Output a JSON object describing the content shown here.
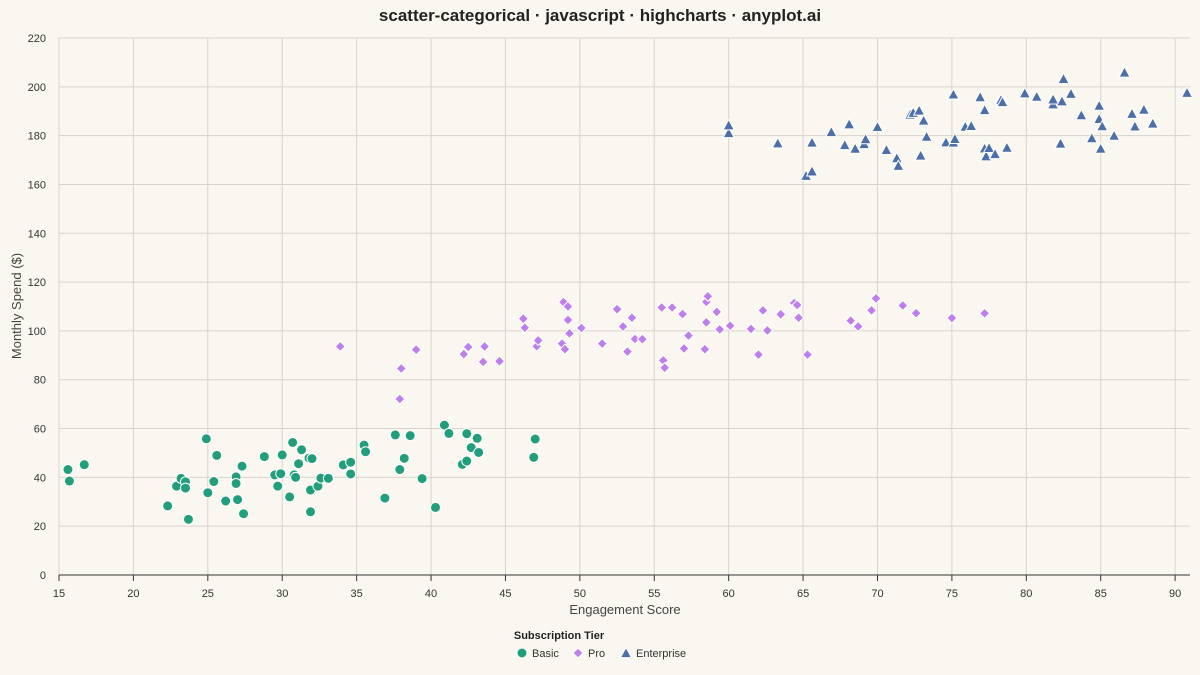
{
  "chart_data": {
    "type": "scatter",
    "title": "scatter-categorical · javascript · highcharts · anyplot.ai",
    "xlabel": "Engagement Score",
    "ylabel": "Monthly Spend ($)",
    "xlim": [
      15,
      91
    ],
    "ylim": [
      0,
      220
    ],
    "x_ticks": [
      15,
      20,
      25,
      30,
      35,
      40,
      45,
      50,
      55,
      60,
      65,
      70,
      75,
      80,
      85,
      90
    ],
    "y_ticks": [
      0,
      20,
      40,
      60,
      80,
      100,
      120,
      140,
      160,
      180,
      200,
      220
    ],
    "grid": true,
    "legend": {
      "title": "Subscription Tier",
      "placement": "bottom-center"
    },
    "series": [
      {
        "name": "Basic",
        "marker": "circle",
        "color": "#239E7C",
        "points": [
          [
            15.6,
            43.2
          ],
          [
            15.7,
            38.5
          ],
          [
            16.7,
            45.2
          ],
          [
            22.3,
            28.3
          ],
          [
            22.9,
            36.4
          ],
          [
            23.2,
            39.6
          ],
          [
            23.5,
            38.2
          ],
          [
            23.5,
            35.6
          ],
          [
            23.7,
            22.8
          ],
          [
            24.9,
            55.8
          ],
          [
            25.0,
            33.7
          ],
          [
            25.4,
            38.3
          ],
          [
            25.6,
            49.0
          ],
          [
            26.2,
            30.3
          ],
          [
            26.9,
            40.2
          ],
          [
            26.9,
            37.5
          ],
          [
            27.0,
            30.9
          ],
          [
            27.3,
            44.6
          ],
          [
            27.4,
            25.1
          ],
          [
            28.8,
            48.5
          ],
          [
            29.5,
            41.0
          ],
          [
            29.7,
            36.4
          ],
          [
            29.9,
            41.5
          ],
          [
            30.0,
            49.2
          ],
          [
            30.5,
            32.0
          ],
          [
            30.7,
            54.3
          ],
          [
            30.8,
            41.0
          ],
          [
            30.9,
            40.0
          ],
          [
            31.1,
            45.6
          ],
          [
            31.3,
            51.3
          ],
          [
            31.8,
            47.9
          ],
          [
            31.9,
            34.8
          ],
          [
            31.9,
            25.9
          ],
          [
            32.0,
            47.7
          ],
          [
            32.4,
            36.4
          ],
          [
            32.6,
            39.7
          ],
          [
            33.1,
            39.6
          ],
          [
            34.1,
            45.1
          ],
          [
            34.6,
            46.2
          ],
          [
            34.6,
            41.4
          ],
          [
            35.5,
            53.2
          ],
          [
            35.6,
            50.5
          ],
          [
            36.9,
            31.5
          ],
          [
            37.6,
            57.4
          ],
          [
            37.9,
            43.2
          ],
          [
            38.2,
            47.8
          ],
          [
            38.6,
            57.1
          ],
          [
            39.4,
            39.5
          ],
          [
            40.3,
            27.7
          ],
          [
            40.9,
            61.4
          ],
          [
            41.2,
            58.0
          ],
          [
            42.1,
            45.3
          ],
          [
            42.4,
            57.9
          ],
          [
            42.4,
            46.7
          ],
          [
            42.7,
            52.2
          ],
          [
            43.1,
            56.0
          ],
          [
            43.2,
            50.2
          ],
          [
            46.9,
            48.2
          ],
          [
            47.0,
            55.7
          ]
        ]
      },
      {
        "name": "Pro",
        "marker": "diamond",
        "color": "#C07EEC",
        "points": [
          [
            33.9,
            93.6
          ],
          [
            37.9,
            72.1
          ],
          [
            38.0,
            84.6
          ],
          [
            39.0,
            92.3
          ],
          [
            42.2,
            90.5
          ],
          [
            42.5,
            93.4
          ],
          [
            43.5,
            87.3
          ],
          [
            43.6,
            93.6
          ],
          [
            44.6,
            87.6
          ],
          [
            46.2,
            105.0
          ],
          [
            46.3,
            101.3
          ],
          [
            47.1,
            93.7
          ],
          [
            47.2,
            96.1
          ],
          [
            48.8,
            94.8
          ],
          [
            48.9,
            111.8
          ],
          [
            49.0,
            92.5
          ],
          [
            49.2,
            110.0
          ],
          [
            49.2,
            104.5
          ],
          [
            49.3,
            99.0
          ],
          [
            50.1,
            101.2
          ],
          [
            51.5,
            94.8
          ],
          [
            52.5,
            108.9
          ],
          [
            52.9,
            101.8
          ],
          [
            53.2,
            91.5
          ],
          [
            53.5,
            105.4
          ],
          [
            53.7,
            96.7
          ],
          [
            54.2,
            96.6
          ],
          [
            55.5,
            109.6
          ],
          [
            55.6,
            87.9
          ],
          [
            55.7,
            84.9
          ],
          [
            56.2,
            109.6
          ],
          [
            56.9,
            106.9
          ],
          [
            57.0,
            92.8
          ],
          [
            57.3,
            98.1
          ],
          [
            58.4,
            92.5
          ],
          [
            58.5,
            103.5
          ],
          [
            58.5,
            111.9
          ],
          [
            58.6,
            114.2
          ],
          [
            59.2,
            107.8
          ],
          [
            59.4,
            100.6
          ],
          [
            60.1,
            102.1
          ],
          [
            61.5,
            100.8
          ],
          [
            62.0,
            90.3
          ],
          [
            62.3,
            108.4
          ],
          [
            62.6,
            100.2
          ],
          [
            63.5,
            106.8
          ],
          [
            64.4,
            111.4
          ],
          [
            64.6,
            110.6
          ],
          [
            64.7,
            105.4
          ],
          [
            65.3,
            90.3
          ],
          [
            68.2,
            104.2
          ],
          [
            68.7,
            101.8
          ],
          [
            69.6,
            108.4
          ],
          [
            69.9,
            113.3
          ],
          [
            71.7,
            110.4
          ],
          [
            72.6,
            107.3
          ],
          [
            75.0,
            105.3
          ],
          [
            77.2,
            107.2
          ]
        ]
      },
      {
        "name": "Enterprise",
        "marker": "triangle",
        "color": "#4C6FA8",
        "points": [
          [
            60.0,
            181.1
          ],
          [
            60.0,
            184.3
          ],
          [
            63.3,
            176.9
          ],
          [
            65.2,
            163.6
          ],
          [
            65.6,
            165.4
          ],
          [
            65.6,
            177.2
          ],
          [
            66.9,
            181.5
          ],
          [
            67.8,
            176.2
          ],
          [
            68.1,
            184.7
          ],
          [
            68.5,
            174.7
          ],
          [
            69.1,
            176.6
          ],
          [
            69.2,
            178.6
          ],
          [
            70.0,
            183.6
          ],
          [
            70.6,
            174.2
          ],
          [
            71.3,
            170.8
          ],
          [
            71.4,
            167.7
          ],
          [
            72.2,
            188.7
          ],
          [
            72.4,
            189.4
          ],
          [
            72.8,
            190.3
          ],
          [
            72.9,
            171.9
          ],
          [
            73.1,
            186.2
          ],
          [
            73.3,
            179.6
          ],
          [
            74.6,
            177.3
          ],
          [
            75.1,
            177.2
          ],
          [
            75.1,
            196.9
          ],
          [
            75.2,
            178.7
          ],
          [
            75.9,
            183.7
          ],
          [
            76.3,
            184.0
          ],
          [
            76.9,
            195.8
          ],
          [
            77.2,
            190.5
          ],
          [
            77.2,
            174.8
          ],
          [
            77.3,
            171.6
          ],
          [
            77.5,
            175.0
          ],
          [
            77.9,
            172.5
          ],
          [
            78.3,
            194.7
          ],
          [
            78.4,
            193.8
          ],
          [
            78.7,
            175.1
          ],
          [
            79.9,
            197.4
          ],
          [
            80.7,
            196.0
          ],
          [
            81.8,
            192.9
          ],
          [
            81.8,
            194.9
          ],
          [
            82.3,
            176.8
          ],
          [
            82.4,
            194.1
          ],
          [
            82.5,
            203.3
          ],
          [
            83.0,
            197.2
          ],
          [
            83.7,
            188.4
          ],
          [
            84.4,
            179.0
          ],
          [
            84.9,
            192.3
          ],
          [
            84.9,
            186.9
          ],
          [
            85.0,
            174.7
          ],
          [
            85.1,
            183.9
          ],
          [
            85.9,
            180.0
          ],
          [
            86.6,
            205.9
          ],
          [
            87.1,
            189.0
          ],
          [
            87.3,
            183.8
          ],
          [
            87.9,
            190.7
          ],
          [
            88.5,
            185.0
          ],
          [
            90.8,
            197.6
          ]
        ]
      }
    ]
  }
}
